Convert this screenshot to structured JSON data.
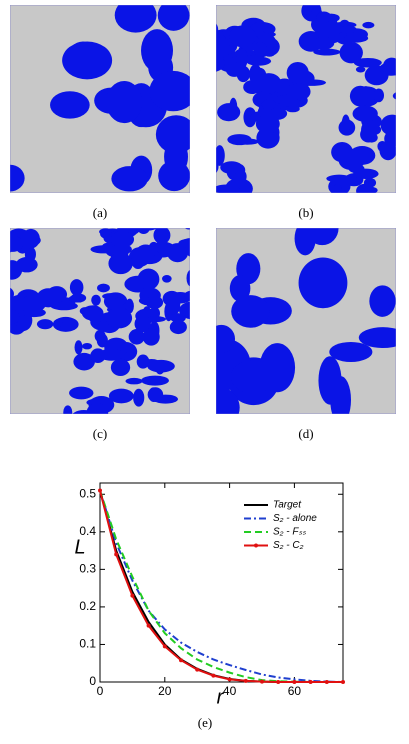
{
  "panels": [
    "(a)",
    "(b)",
    "(c)",
    "(d)"
  ],
  "chart_label": "(e)",
  "chart_data": {
    "type": "line",
    "xlabel": "r",
    "ylabel": "L",
    "x": [
      0,
      5,
      10,
      15,
      20,
      25,
      30,
      35,
      40,
      45,
      50,
      55,
      60,
      65,
      70,
      75
    ],
    "series": [
      {
        "name": "Target",
        "color": "#000000",
        "style": "solid",
        "marker": false,
        "values": [
          0.51,
          0.35,
          0.24,
          0.16,
          0.1,
          0.06,
          0.035,
          0.018,
          0.008,
          0.003,
          0.001,
          0,
          0,
          0,
          0,
          0
        ]
      },
      {
        "name": "S₂ - alone",
        "color": "#1f3fcf",
        "style": "dashdot",
        "marker": false,
        "values": [
          0.51,
          0.37,
          0.27,
          0.19,
          0.14,
          0.105,
          0.08,
          0.06,
          0.045,
          0.032,
          0.02,
          0.012,
          0.007,
          0.003,
          0.001,
          0
        ]
      },
      {
        "name": "S₂ - Fₛₛ",
        "color": "#22cc22",
        "style": "dashed",
        "marker": false,
        "values": [
          0.51,
          0.38,
          0.28,
          0.19,
          0.13,
          0.09,
          0.06,
          0.04,
          0.025,
          0.013,
          0.005,
          0.002,
          0.001,
          0,
          0,
          0
        ]
      },
      {
        "name": "S₂ - C₂",
        "color": "#e01010",
        "style": "solid",
        "marker": true,
        "values": [
          0.51,
          0.34,
          0.23,
          0.15,
          0.095,
          0.058,
          0.033,
          0.017,
          0.007,
          0.003,
          0.001,
          0,
          0,
          0,
          0,
          0
        ]
      }
    ],
    "xlim": [
      0,
      75
    ],
    "ylim": [
      0,
      0.53
    ],
    "xticks": [
      0,
      20,
      40,
      60
    ],
    "yticks": [
      0,
      0.1,
      0.2,
      0.3,
      0.4,
      0.5
    ],
    "legend": "upper right"
  }
}
